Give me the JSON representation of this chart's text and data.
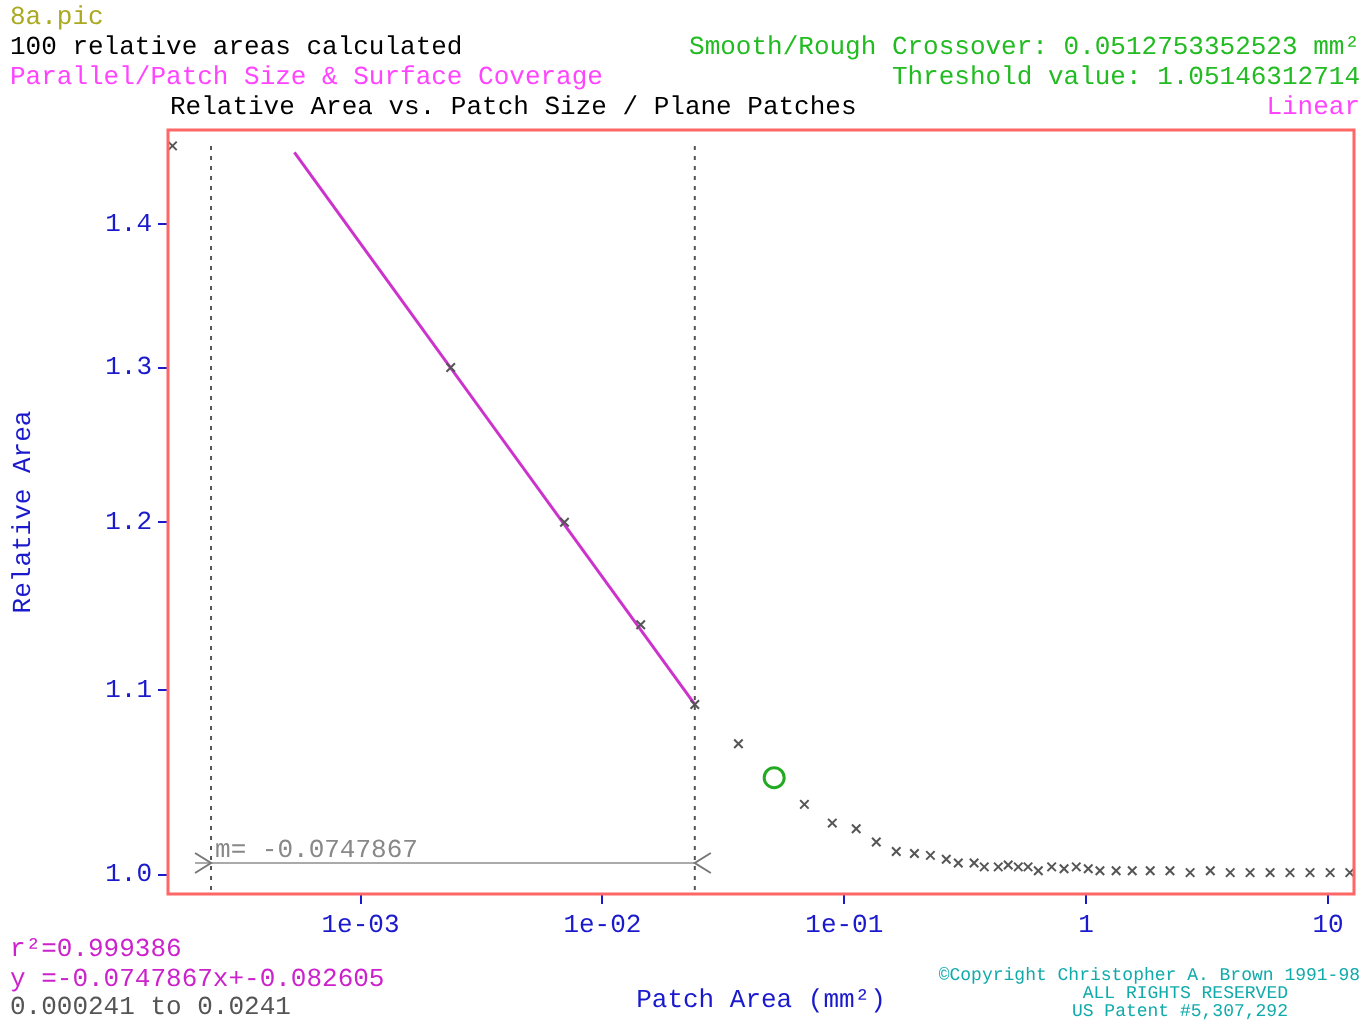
{
  "chart_data": {
    "type": "scatter",
    "title": "Relative Area vs. Patch Size / Plane Patches",
    "xlabel": "Patch Area (mm²)",
    "ylabel": "Relative Area",
    "log": "xy",
    "grid": false,
    "legend": false,
    "xlim": [
      0.00016,
      12.8
    ],
    "ylim": [
      0.99,
      1.47
    ],
    "xticks": [
      {
        "value": 0.001,
        "label": "1e-03"
      },
      {
        "value": 0.01,
        "label": "1e-02"
      },
      {
        "value": 0.1,
        "label": "1e-01"
      },
      1,
      10
    ],
    "yticks": [
      {
        "value": 1,
        "label": "1.0"
      },
      1.1,
      1.2,
      1.3,
      1.4
    ],
    "series": [
      {
        "type": "line",
        "color": "#cc33cc",
        "marker": "none",
        "line_style": "solid",
        "x": [
          0.000533,
          0.0241
        ],
        "values": [
          1.453,
          1.092
        ]
      },
      {
        "type": "scatter",
        "color": "#555555",
        "marker": "cross",
        "x": [
          0.000167,
          0.00236,
          0.00697,
          0.0144,
          0.0241,
          0.0365,
          0.0684,
          0.0892,
          0.112,
          0.1356,
          0.164,
          0.195,
          0.227,
          0.264,
          0.296,
          0.344,
          0.379,
          0.433,
          0.476,
          0.524,
          0.575,
          0.634,
          0.72,
          0.81,
          0.91,
          1.02,
          1.14,
          1.33,
          1.55,
          1.84,
          2.22,
          2.69,
          3.26,
          3.94,
          4.76,
          5.76,
          6.96,
          8.42,
          10.2,
          12.3
        ],
        "values": [
          1.458,
          1.3,
          1.2,
          1.138,
          1.092,
          1.07,
          1.037,
          1.027,
          1.024,
          1.017,
          1.012,
          1.011,
          1.01,
          1.008,
          1.006,
          1.006,
          1.004,
          1.004,
          1.005,
          1.004,
          1.004,
          1.002,
          1.004,
          1.003,
          1.004,
          1.003,
          1.002,
          1.002,
          1.002,
          1.002,
          1.002,
          1.001,
          1.002,
          1.001,
          1.001,
          1.001,
          1.001,
          1.001,
          1.001,
          1.001
        ]
      },
      {
        "type": "scatter",
        "color": "#22aa22",
        "marker": "circle",
        "x": [
          0.0513
        ],
        "values": [
          1.0514
        ]
      }
    ],
    "ref_lines": [
      {
        "axis": "x",
        "value": 0.000241,
        "color": "#555555",
        "line_style": "dotted"
      },
      {
        "axis": "x",
        "value": 0.0241,
        "color": "#555555",
        "line_style": "dotted"
      }
    ],
    "annotations": [
      "8a.pic",
      "100 relative areas calculated",
      "Parallel/Patch Size & Surface Coverage",
      "Smooth/Rough Crossover: 0.0512753352523 mm²",
      "Threshold value: 1.05146312714",
      "Linear",
      {
        "text": "m= -0.0747867",
        "x": 0.000241,
        "y": 1.006
      },
      "r²=0.999386",
      "y =-0.0747867x+-0.082605",
      "0.000241 to 0.0241",
      "©Copyright Christopher A. Brown 1991-98",
      "ALL RIGHTS RESERVED",
      "US Patent #5,307,292"
    ]
  }
}
